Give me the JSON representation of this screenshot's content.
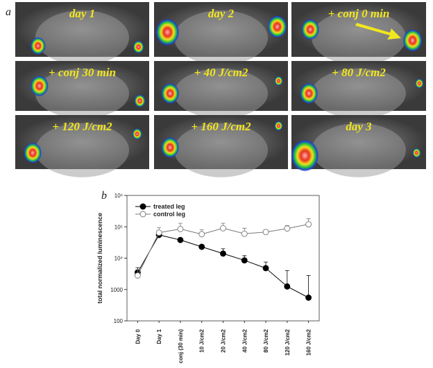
{
  "panel_a": {
    "label": "a",
    "images": [
      {
        "caption": "day 1"
      },
      {
        "caption": "day 2"
      },
      {
        "caption": "+ conj 0 min"
      },
      {
        "caption": "+ conj 30 min"
      },
      {
        "caption": "+ 40 J/cm2"
      },
      {
        "caption": "+ 80 J/cm2"
      },
      {
        "caption": "+ 120 J/cm2"
      },
      {
        "caption": "+ 160 J/cm2"
      },
      {
        "caption": "day 3"
      }
    ]
  },
  "chart_data": {
    "type": "line",
    "panel_label": "b",
    "ylabel": "total  normalized  luminescence",
    "categories": [
      "Day 0",
      "Day 1",
      "conj (30 min)",
      "10  J/cm2",
      "20  J/cm2",
      "40  J/cm2",
      "80  J/cm2",
      "120  J/cm2",
      "160  J/cm2"
    ],
    "series": [
      {
        "name": "treated   leg",
        "color": "#000000",
        "marker": "filled",
        "values": [
          3500,
          55000,
          38000,
          23000,
          14000,
          8500,
          4800,
          1250,
          550
        ],
        "errors": [
          1500,
          5000,
          4000,
          3000,
          6000,
          3500,
          2700,
          2750,
          2250
        ]
      },
      {
        "name": "control   leg",
        "color": "#777777",
        "marker": "open",
        "values": [
          2800,
          65000,
          85000,
          58000,
          90000,
          60000,
          68000,
          88000,
          120000
        ],
        "errors": [
          1500,
          30000,
          45000,
          22000,
          40000,
          30000,
          10000,
          22000,
          60000
        ]
      }
    ],
    "log_y": true,
    "ylim": [
      100,
      1000000
    ],
    "yticks": [
      100,
      1000,
      {
        "value": 10000,
        "label": "10⁴"
      },
      {
        "value": 100000,
        "label": "10⁵"
      },
      {
        "value": 1000000,
        "label": "10⁶"
      }
    ]
  }
}
